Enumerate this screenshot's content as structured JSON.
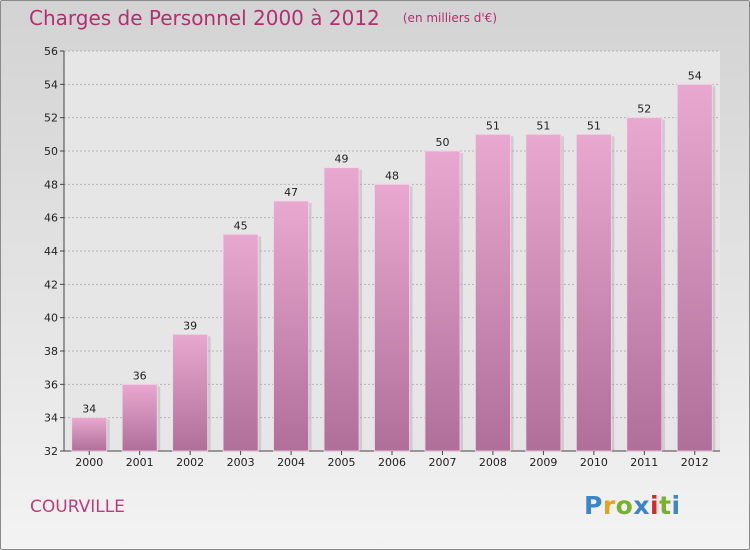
{
  "header": {
    "title": "Charges de Personnel 2000 à 2012",
    "unit": "(en milliers d'€)"
  },
  "footer": {
    "commune": "COURVILLE",
    "logo": "Proxiti"
  },
  "colors": {
    "bar_top": "#e8a8cf",
    "bar_bottom": "#b06f99",
    "title": "#b03070",
    "logo_letters": [
      "#3a86c8",
      "#e8a020",
      "#7ab030",
      "#3a86c8",
      "#d8282e",
      "#7ab030",
      "#3a86c8"
    ]
  },
  "chart_data": {
    "type": "bar",
    "title": "Charges de Personnel 2000 à 2012",
    "categories": [
      "2000",
      "2001",
      "2002",
      "2003",
      "2004",
      "2005",
      "2006",
      "2007",
      "2008",
      "2009",
      "2010",
      "2011",
      "2012"
    ],
    "values": [
      34,
      36,
      39,
      45,
      47,
      49,
      48,
      50,
      51,
      51,
      51,
      52,
      54
    ],
    "ylim": [
      32,
      56
    ],
    "yticks": [
      32,
      34,
      36,
      38,
      40,
      42,
      44,
      46,
      48,
      50,
      52,
      54,
      56
    ],
    "grid": true,
    "xlabel": "",
    "ylabel": ""
  }
}
